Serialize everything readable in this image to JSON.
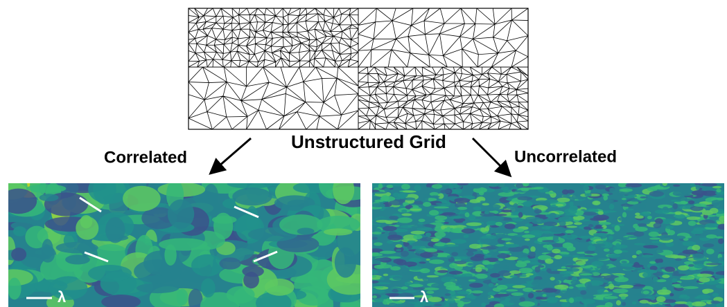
{
  "title": "Unstructured Grid",
  "branches": [
    {
      "label": "Correlated",
      "scale_label": "λ"
    },
    {
      "label": "Uncorrelated",
      "scale_label": "λ"
    }
  ]
}
